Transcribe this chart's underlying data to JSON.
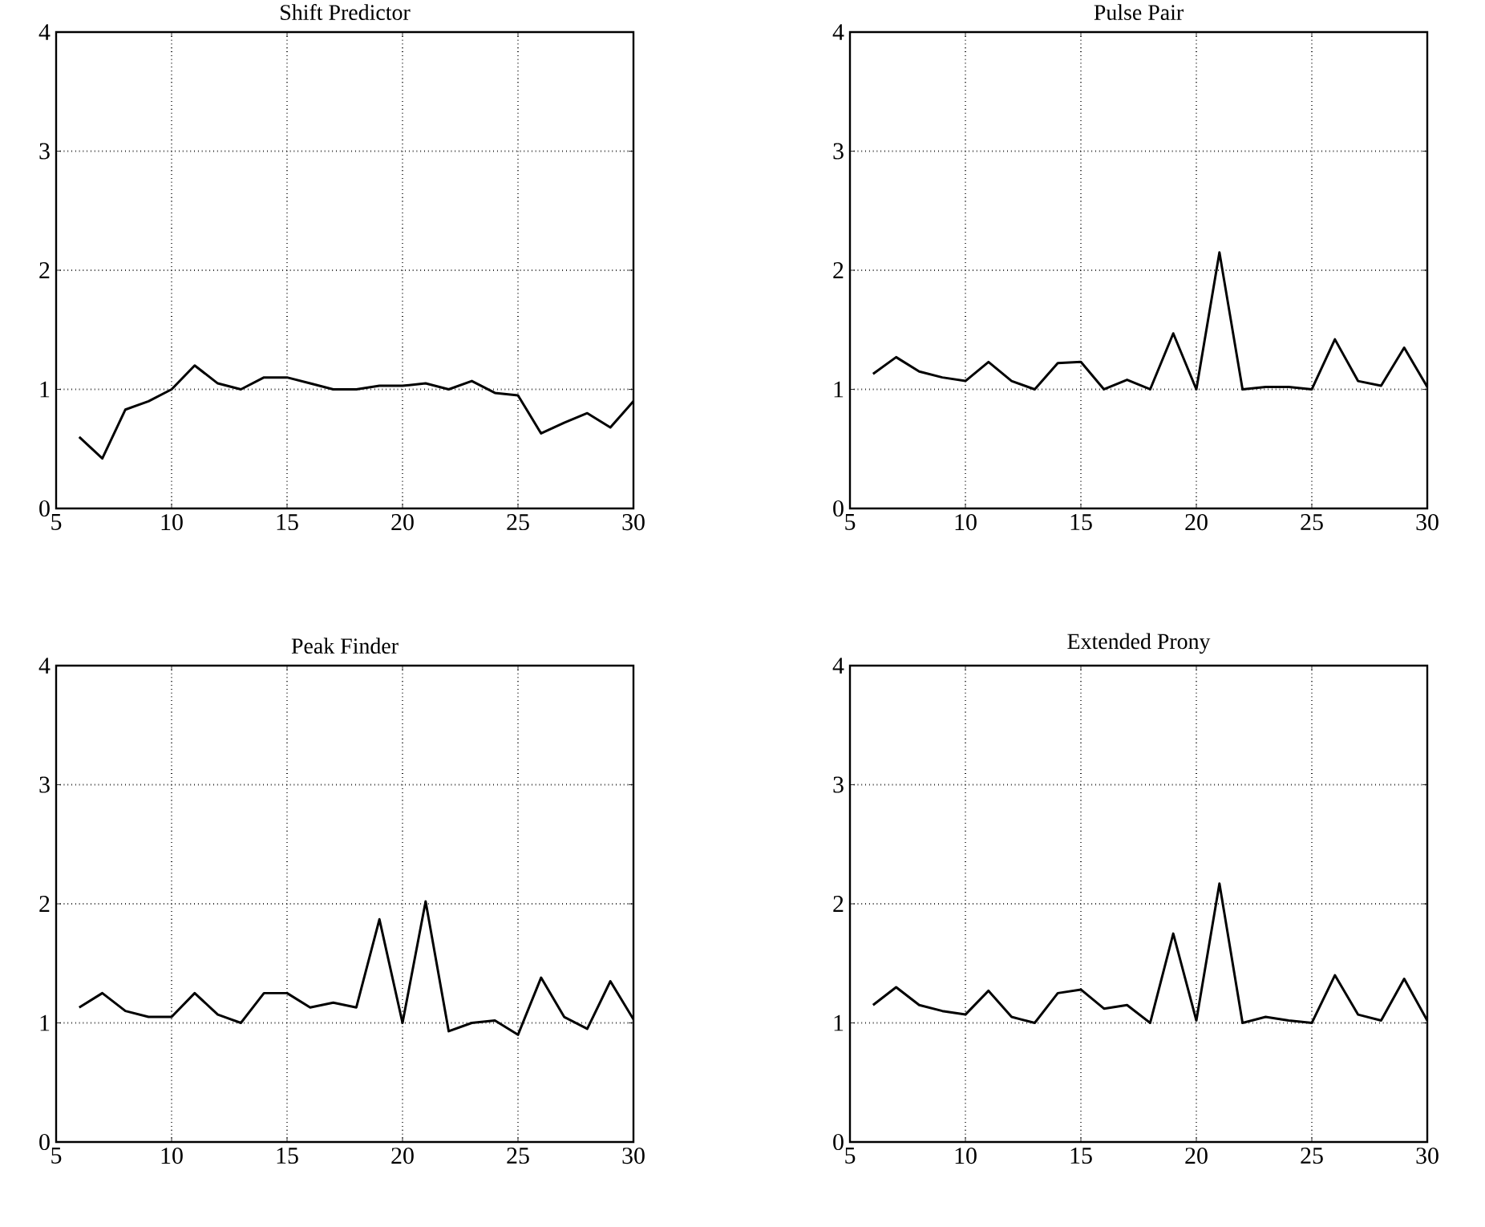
{
  "chart_data": [
    {
      "type": "line",
      "title": "Shift Predictor",
      "x": [
        6,
        7,
        8,
        9,
        10,
        11,
        12,
        13,
        14,
        15,
        16,
        17,
        18,
        19,
        20,
        21,
        22,
        23,
        24,
        25,
        26,
        27,
        28,
        29,
        30
      ],
      "values": [
        0.6,
        0.42,
        0.83,
        0.9,
        1.0,
        1.2,
        1.05,
        1.0,
        1.1,
        1.1,
        1.05,
        1.0,
        1.0,
        1.03,
        1.03,
        1.05,
        1.0,
        1.07,
        0.97,
        0.95,
        0.63,
        0.72,
        0.8,
        0.68,
        0.9
      ],
      "color": "#000000",
      "xlim": [
        5,
        30
      ],
      "xticks": [
        5,
        10,
        15,
        20,
        25,
        30
      ],
      "ylim": [
        0,
        4
      ],
      "yticks": [
        0,
        1,
        2,
        3,
        4
      ],
      "grid": true
    },
    {
      "type": "line",
      "title": "Pulse Pair",
      "x": [
        6,
        7,
        8,
        9,
        10,
        11,
        12,
        13,
        14,
        15,
        16,
        17,
        18,
        19,
        20,
        21,
        22,
        23,
        24,
        25,
        26,
        27,
        28,
        29,
        30
      ],
      "values": [
        1.13,
        1.27,
        1.15,
        1.1,
        1.07,
        1.23,
        1.07,
        1.0,
        1.22,
        1.23,
        1.0,
        1.08,
        1.0,
        1.47,
        1.0,
        2.15,
        1.0,
        1.02,
        1.02,
        1.0,
        1.42,
        1.07,
        1.03,
        1.35,
        1.02
      ],
      "color": "#000000",
      "xlim": [
        5,
        30
      ],
      "xticks": [
        5,
        10,
        15,
        20,
        25,
        30
      ],
      "ylim": [
        0,
        4
      ],
      "yticks": [
        0,
        1,
        2,
        3,
        4
      ],
      "grid": true
    },
    {
      "type": "line",
      "title": "Peak Finder",
      "x": [
        6,
        7,
        8,
        9,
        10,
        11,
        12,
        13,
        14,
        15,
        16,
        17,
        18,
        19,
        20,
        21,
        22,
        23,
        24,
        25,
        26,
        27,
        28,
        29,
        30
      ],
      "values": [
        1.13,
        1.25,
        1.1,
        1.05,
        1.05,
        1.25,
        1.07,
        1.0,
        1.25,
        1.25,
        1.13,
        1.17,
        1.13,
        1.87,
        1.0,
        2.02,
        0.93,
        1.0,
        1.02,
        0.9,
        1.38,
        1.05,
        0.95,
        1.35,
        1.03
      ],
      "color": "#000000",
      "xlim": [
        5,
        30
      ],
      "xticks": [
        5,
        10,
        15,
        20,
        25,
        30
      ],
      "ylim": [
        0,
        4
      ],
      "yticks": [
        0,
        1,
        2,
        3,
        4
      ],
      "grid": true
    },
    {
      "type": "line",
      "title": "Extended Prony",
      "x": [
        6,
        7,
        8,
        9,
        10,
        11,
        12,
        13,
        14,
        15,
        16,
        17,
        18,
        19,
        20,
        21,
        22,
        23,
        24,
        25,
        26,
        27,
        28,
        29,
        30
      ],
      "values": [
        1.15,
        1.3,
        1.15,
        1.1,
        1.07,
        1.27,
        1.05,
        1.0,
        1.25,
        1.28,
        1.12,
        1.15,
        1.0,
        1.75,
        1.02,
        2.17,
        1.0,
        1.05,
        1.02,
        1.0,
        1.4,
        1.07,
        1.02,
        1.37,
        1.02
      ],
      "color": "#000000",
      "xlim": [
        5,
        30
      ],
      "xticks": [
        5,
        10,
        15,
        20,
        25,
        30
      ],
      "ylim": [
        0,
        4
      ],
      "yticks": [
        0,
        1,
        2,
        3,
        4
      ],
      "grid": true
    }
  ]
}
